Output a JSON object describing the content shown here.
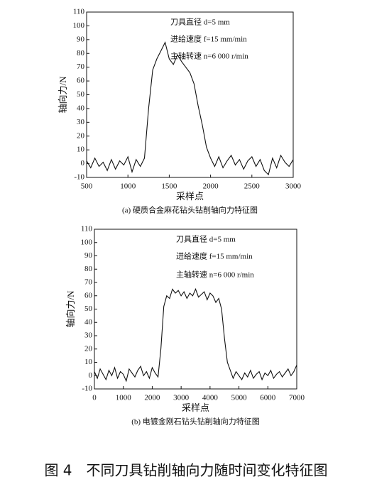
{
  "caption": "图 4　不同刀具钻削轴向力随时间变化特征图",
  "chart_data": [
    {
      "type": "line",
      "subtitle": "(a)  硬质合金麻花钻头钻削轴向力特征图",
      "xlabel": "采样点",
      "ylabel": "轴向力/N",
      "annotations": [
        "刀具直径 d=5 mm",
        "进给速度 f=15 mm/min",
        "主轴转速 n=6 000 r/min"
      ],
      "xlim": [
        500,
        3000
      ],
      "xticks": [
        500,
        1000,
        1500,
        2000,
        2500,
        3000
      ],
      "ylim": [
        -10,
        110
      ],
      "yticks": [
        -10,
        0,
        10,
        20,
        30,
        40,
        50,
        60,
        70,
        80,
        90,
        100,
        110
      ],
      "color": "#111111",
      "x": [
        500,
        550,
        600,
        650,
        700,
        750,
        800,
        850,
        900,
        950,
        1000,
        1050,
        1100,
        1150,
        1200,
        1250,
        1300,
        1350,
        1400,
        1450,
        1500,
        1550,
        1600,
        1650,
        1700,
        1750,
        1800,
        1850,
        1900,
        1950,
        2000,
        2050,
        2100,
        2150,
        2200,
        2250,
        2300,
        2350,
        2400,
        2450,
        2500,
        2550,
        2600,
        2650,
        2700,
        2750,
        2800,
        2850,
        2900,
        2950,
        3000
      ],
      "values": [
        2,
        -3,
        4,
        -2,
        1,
        -5,
        3,
        -4,
        2,
        -1,
        5,
        -6,
        3,
        -2,
        4,
        40,
        68,
        76,
        82,
        88,
        76,
        72,
        79,
        74,
        70,
        66,
        58,
        42,
        28,
        12,
        4,
        -2,
        5,
        -3,
        2,
        6,
        -1,
        3,
        -4,
        2,
        5,
        -2,
        3,
        -5,
        -8,
        4,
        -3,
        6,
        1,
        -2,
        3
      ]
    },
    {
      "type": "line",
      "subtitle": "(b)  电镀金刚石钻头钻削轴向力特征图",
      "xlabel": "采样点",
      "ylabel": "轴向力/N",
      "annotations": [
        "刀具直径 d=5 mm",
        "进给速度 f=15 mm/min",
        "主轴转速 n=6 000 r/min"
      ],
      "xlim": [
        0,
        7000
      ],
      "xticks": [
        0,
        1000,
        2000,
        3000,
        4000,
        5000,
        6000,
        7000
      ],
      "ylim": [
        -10,
        110
      ],
      "yticks": [
        -10,
        0,
        10,
        20,
        30,
        40,
        50,
        60,
        70,
        80,
        90,
        100,
        110
      ],
      "color": "#111111",
      "x": [
        0,
        100,
        200,
        300,
        400,
        500,
        600,
        700,
        800,
        900,
        1000,
        1100,
        1200,
        1300,
        1400,
        1500,
        1600,
        1700,
        1800,
        1900,
        2000,
        2100,
        2200,
        2300,
        2400,
        2500,
        2600,
        2700,
        2800,
        2900,
        3000,
        3100,
        3200,
        3300,
        3400,
        3500,
        3600,
        3700,
        3800,
        3900,
        4000,
        4100,
        4200,
        4300,
        4400,
        4500,
        4600,
        4700,
        4800,
        4900,
        5000,
        5100,
        5200,
        5300,
        5400,
        5500,
        5600,
        5700,
        5800,
        5900,
        6000,
        6100,
        6200,
        6300,
        6400,
        6500,
        6600,
        6700,
        6800,
        6900,
        7000
      ],
      "values": [
        3,
        -2,
        5,
        1,
        -3,
        4,
        0,
        6,
        -2,
        3,
        1,
        -4,
        5,
        2,
        -1,
        4,
        7,
        0,
        3,
        -2,
        6,
        2,
        -1,
        20,
        52,
        60,
        58,
        65,
        62,
        64,
        60,
        63,
        58,
        62,
        60,
        65,
        59,
        61,
        63,
        57,
        62,
        60,
        55,
        58,
        50,
        28,
        10,
        4,
        -2,
        3,
        0,
        -3,
        2,
        -1,
        4,
        -2,
        1,
        3,
        -3,
        2,
        0,
        4,
        -2,
        1,
        3,
        -1,
        2,
        5,
        0,
        3,
        8
      ]
    }
  ]
}
